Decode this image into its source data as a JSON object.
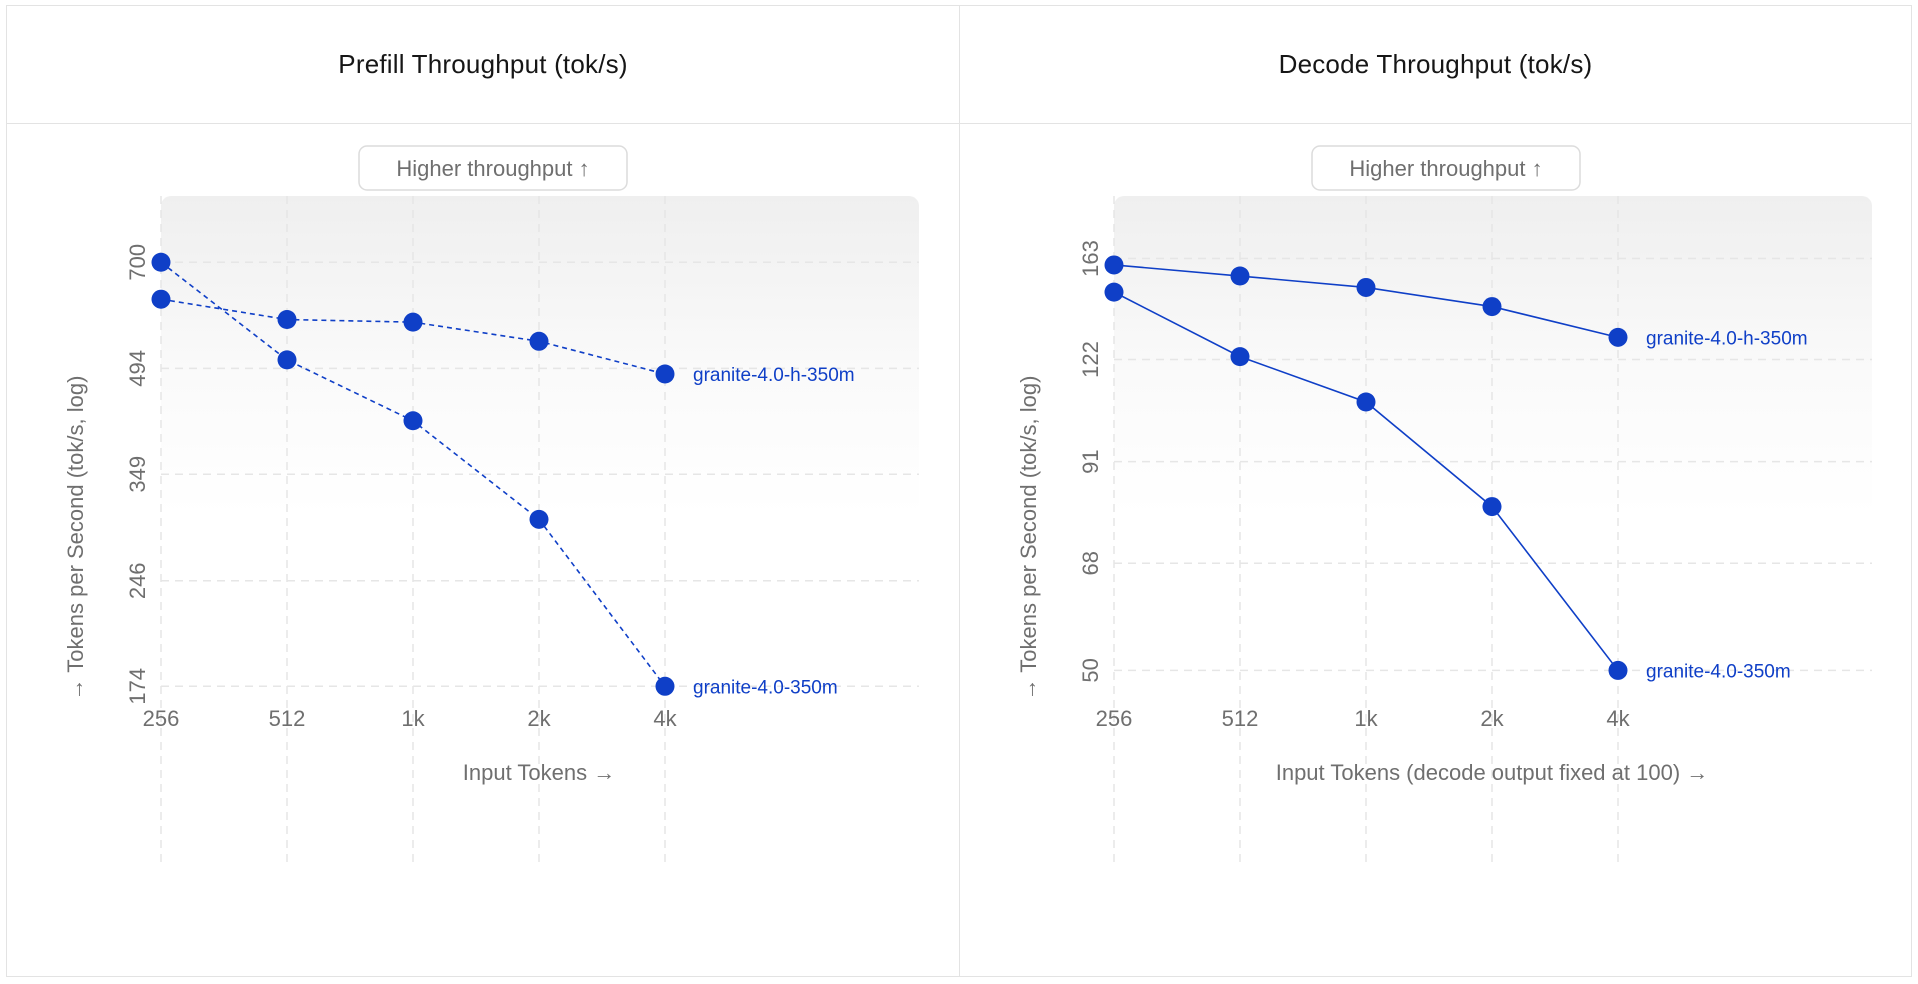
{
  "colors": {
    "series": "#0f3fc7",
    "grid": "#e6e6e6",
    "text": "#6f6f6f",
    "title": "#161616"
  },
  "chart_data": [
    {
      "type": "line",
      "title": "Prefill Throughput (tok/s)",
      "badge": "Higher throughput ↑",
      "xlabel": "Input Tokens →",
      "ylabel": "→ Tokens per Second (tok/s, log)",
      "yscale": "log",
      "line_style": "dashed",
      "categories": [
        "256",
        "512",
        "1k",
        "2k",
        "4k"
      ],
      "yticks": [
        700,
        494,
        349,
        246,
        174
      ],
      "ylim": [
        110,
        870
      ],
      "series": [
        {
          "name": "granite-4.0-h-350m",
          "values": [
            620,
            580,
            575,
            540,
            485
          ]
        },
        {
          "name": "granite-4.0-350m",
          "values": [
            700,
            508,
            416,
            301,
            174
          ]
        }
      ]
    },
    {
      "type": "line",
      "title": "Decode Throughput (tok/s)",
      "badge": "Higher throughput ↑",
      "xlabel": "Input Tokens (decode output fixed at 100) →",
      "ylabel": "→ Tokens per Second (tok/s, log)",
      "yscale": "log",
      "line_style": "solid",
      "categories": [
        "256",
        "512",
        "1k",
        "2k",
        "4k"
      ],
      "yticks": [
        163,
        122,
        91,
        68,
        50
      ],
      "ylim": [
        32,
        195
      ],
      "series": [
        {
          "name": "granite-4.0-h-350m",
          "values": [
            160,
            155,
            150,
            142,
            130
          ]
        },
        {
          "name": "granite-4.0-350m",
          "values": [
            148,
            123,
            108,
            80,
            50
          ]
        }
      ]
    }
  ]
}
